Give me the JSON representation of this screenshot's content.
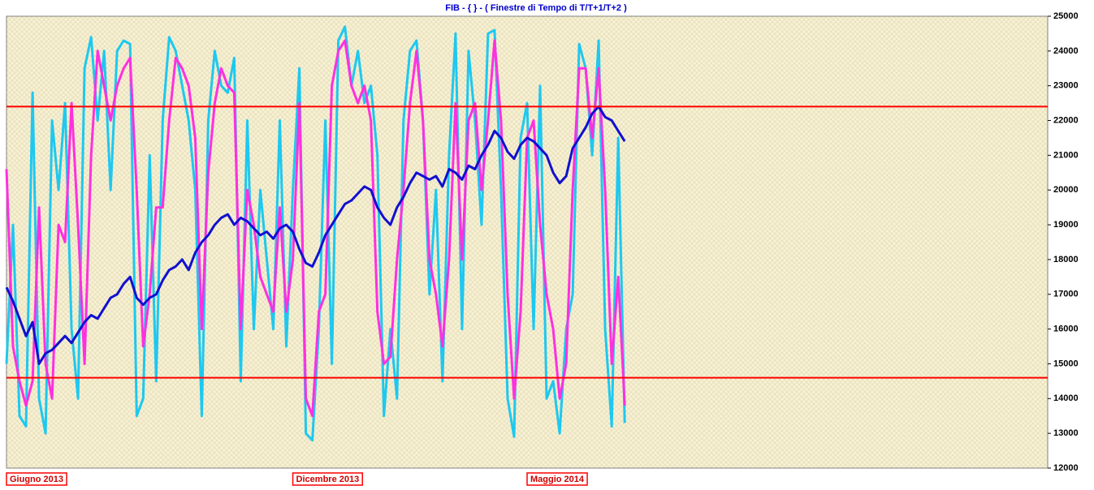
{
  "chart_data": {
    "type": "line",
    "title": "FIB - { } - ( Finestre di Tempo di T/T+1/T+2 )",
    "x": [
      0,
      1,
      2,
      3,
      4,
      5,
      6,
      7,
      8,
      9,
      10,
      11,
      12,
      13,
      14,
      15,
      16,
      17,
      18,
      19,
      20,
      21,
      22,
      23,
      24,
      25,
      26,
      27,
      28,
      29,
      30,
      31,
      32,
      33,
      34,
      35,
      36,
      37,
      38,
      39,
      40,
      41,
      42,
      43,
      44,
      45,
      46,
      47,
      48,
      49,
      50,
      51,
      52,
      53,
      54,
      55,
      56,
      57,
      58,
      59,
      60,
      61,
      62,
      63,
      64,
      65,
      66,
      67,
      68,
      69,
      70,
      71,
      72,
      73,
      74,
      75,
      76,
      77,
      78,
      79,
      80,
      81,
      82,
      83,
      84,
      85,
      86,
      87,
      88,
      89,
      90,
      91,
      92,
      93,
      94,
      95
    ],
    "xlim": [
      0,
      160
    ],
    "xticks": [
      {
        "value": 0,
        "label": "Giugno 2013"
      },
      {
        "value": 44,
        "label": "Dicembre 2013"
      },
      {
        "value": 80,
        "label": "Maggio 2014"
      }
    ],
    "ylim": [
      12000,
      25000
    ],
    "yticks": [
      12000,
      13000,
      14000,
      15000,
      16000,
      17000,
      18000,
      19000,
      20000,
      21000,
      22000,
      23000,
      24000,
      25000
    ],
    "reference_lines": {
      "color": "#ff0000",
      "values": [
        22400,
        14600
      ]
    },
    "series": [
      {
        "name": "T",
        "color": "#1ec8f0",
        "values": [
          15000,
          19000,
          13500,
          13200,
          22800,
          14000,
          13000,
          22000,
          20000,
          22500,
          16000,
          14000,
          23500,
          24400,
          22000,
          24000,
          20000,
          24000,
          24300,
          24200,
          13500,
          14000,
          21000,
          14500,
          22000,
          24400,
          24000,
          23000,
          22000,
          20000,
          13500,
          22000,
          24000,
          23000,
          22800,
          23800,
          14500,
          22000,
          16000,
          20000,
          18000,
          16000,
          22000,
          15500,
          20000,
          23500,
          13000,
          12800,
          16000,
          22000,
          15000,
          24300,
          24700,
          23000,
          24000,
          22500,
          23000,
          21000,
          13500,
          16000,
          14000,
          22000,
          24000,
          24300,
          22000,
          17000,
          20000,
          14500,
          21000,
          24500,
          16000,
          24000,
          22000,
          19000,
          24500,
          24600,
          20000,
          14000,
          12900,
          21500,
          22500,
          16000,
          23000,
          14000,
          14500,
          13000,
          16000,
          17000,
          24200,
          23500,
          21000,
          24300,
          16000,
          13200,
          21500,
          13300
        ]
      },
      {
        "name": "T+1",
        "color": "#ff30e0",
        "values": [
          20600,
          15500,
          14500,
          13800,
          14500,
          19500,
          15000,
          14000,
          19000,
          18500,
          22500,
          19000,
          15000,
          21000,
          24000,
          23000,
          22000,
          23000,
          23500,
          23800,
          20000,
          15500,
          17000,
          19500,
          19500,
          22000,
          23800,
          23500,
          23000,
          21500,
          16000,
          20500,
          22500,
          23500,
          23000,
          22800,
          16000,
          20000,
          19000,
          17500,
          17000,
          16500,
          19500,
          16500,
          18000,
          22500,
          14000,
          13500,
          16500,
          17000,
          23000,
          24000,
          24300,
          23000,
          22500,
          23000,
          22000,
          16500,
          15000,
          15200,
          18000,
          20000,
          22500,
          24000,
          22000,
          18000,
          17000,
          15500,
          18000,
          22500,
          18000,
          22000,
          22500,
          20000,
          22000,
          24300,
          22000,
          17000,
          14000,
          16500,
          21500,
          22000,
          19000,
          17000,
          16000,
          14000,
          15000,
          20000,
          23500,
          23500,
          21500,
          23500,
          20000,
          15000,
          17500,
          13800
        ]
      },
      {
        "name": "T+2",
        "color": "#1010d0",
        "values": [
          17200,
          16800,
          16300,
          15800,
          16200,
          15000,
          15300,
          15400,
          15600,
          15800,
          15600,
          15900,
          16200,
          16400,
          16300,
          16600,
          16900,
          17000,
          17300,
          17500,
          16900,
          16700,
          16900,
          17000,
          17400,
          17700,
          17800,
          18000,
          17700,
          18200,
          18500,
          18700,
          19000,
          19200,
          19300,
          19000,
          19200,
          19100,
          18900,
          18700,
          18800,
          18600,
          18900,
          19000,
          18800,
          18300,
          17900,
          17800,
          18200,
          18700,
          19000,
          19300,
          19600,
          19700,
          19900,
          20100,
          20000,
          19500,
          19200,
          19000,
          19500,
          19800,
          20200,
          20500,
          20400,
          20300,
          20400,
          20100,
          20600,
          20500,
          20300,
          20700,
          20600,
          21000,
          21300,
          21700,
          21500,
          21100,
          20900,
          21300,
          21500,
          21400,
          21200,
          21000,
          20500,
          20200,
          20400,
          21200,
          21500,
          21800,
          22200,
          22400,
          22100,
          22000,
          21700,
          21400
        ]
      }
    ]
  }
}
